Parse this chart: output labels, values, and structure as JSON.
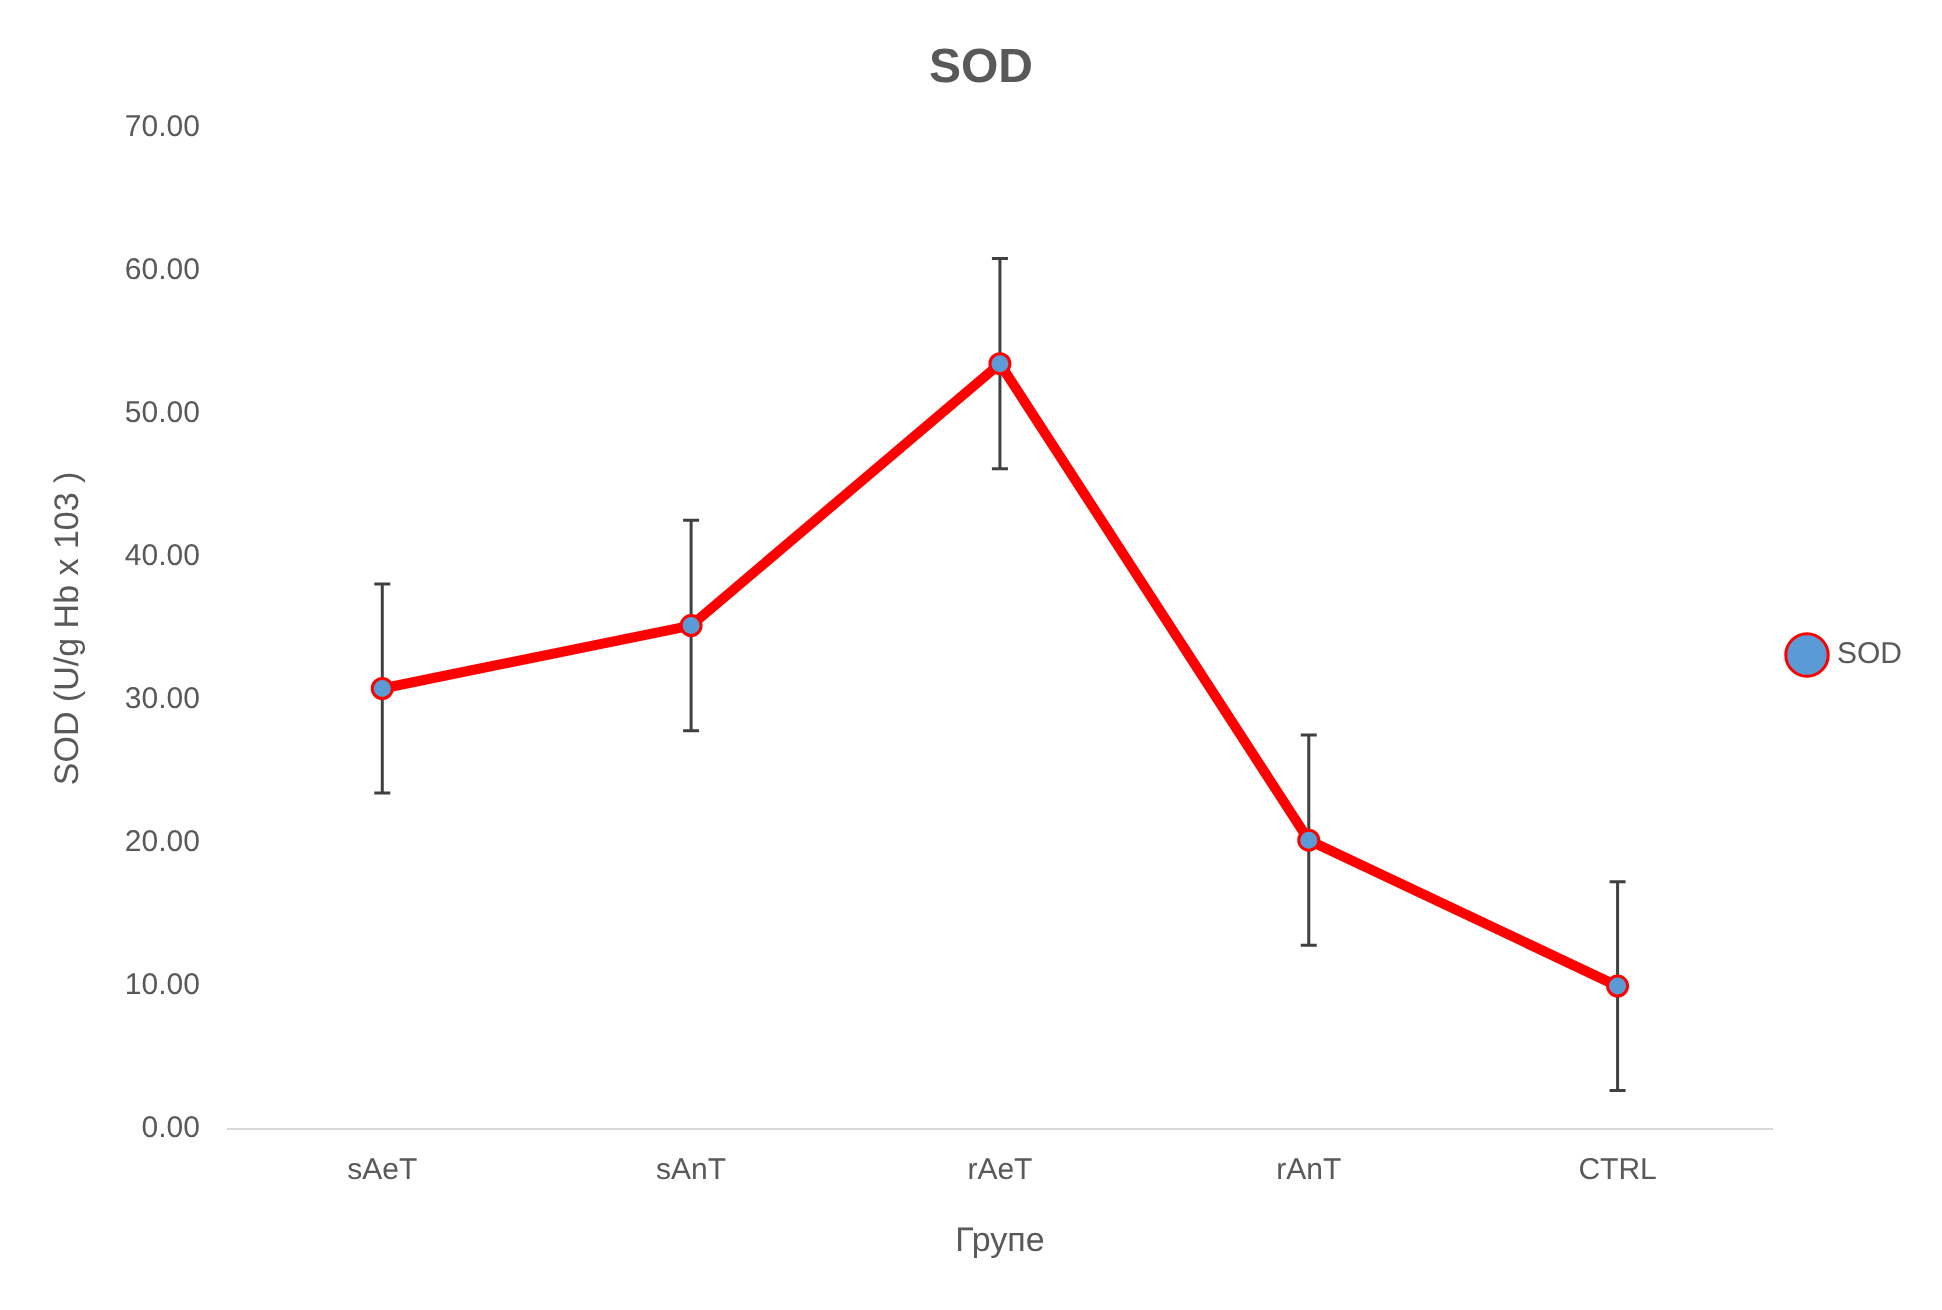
{
  "chart_data": {
    "type": "line",
    "title": "SOD",
    "xlabel": "Групе",
    "ylabel": "SOD (U/g Hb x 103 )",
    "categories": [
      "sAeT",
      "sAnT",
      "rAeT",
      "rAnT",
      "CTRL"
    ],
    "series": [
      {
        "name": "SOD",
        "color": "#ff0000",
        "values": [
          30.8,
          35.2,
          53.5,
          20.2,
          10.0
        ],
        "errors": [
          7.3,
          7.35,
          7.35,
          7.35,
          7.3
        ]
      }
    ],
    "ylim": [
      0,
      70
    ],
    "yticks": [
      {
        "value": 0,
        "label": "0.00"
      },
      {
        "value": 10,
        "label": "10.00"
      },
      {
        "value": 20,
        "label": "20.00"
      },
      {
        "value": 30,
        "label": "30.00"
      },
      {
        "value": 40,
        "label": "40.00"
      },
      {
        "value": 50,
        "label": "50.00"
      },
      {
        "value": 60,
        "label": "60.00"
      },
      {
        "value": 70,
        "label": "70.00"
      }
    ],
    "grid": false,
    "legend": "right",
    "marker": "circle",
    "line_style": "solid"
  }
}
